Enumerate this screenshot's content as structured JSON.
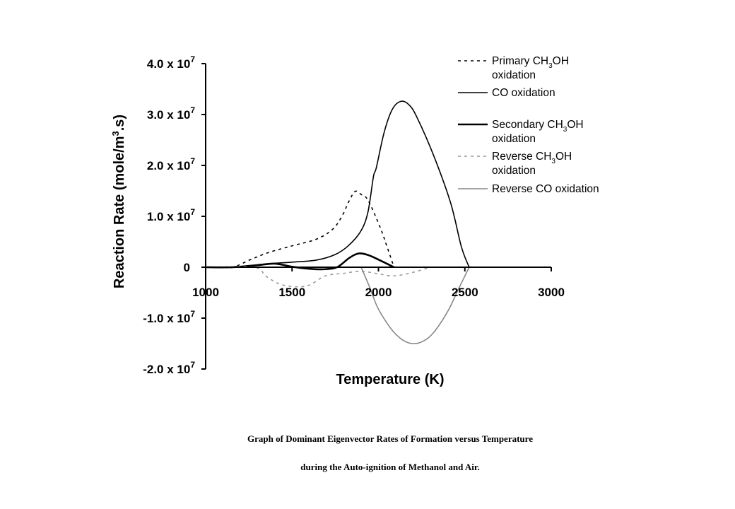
{
  "chart_data": {
    "type": "line",
    "xlabel": "Temperature (K)",
    "ylabel": "Reaction Rate (mole/m³.s)",
    "xlim": [
      1000,
      3000
    ],
    "ylim": [
      -20000000,
      40000000
    ],
    "x_ticks": [
      "1000",
      "1500",
      "2000",
      "2500",
      "3000"
    ],
    "x_tick_values": [
      1000,
      1500,
      2000,
      2500,
      3000
    ],
    "y_ticks": [
      {
        "value": 40000000,
        "mantissa": "4.0 x 10",
        "exp": "7"
      },
      {
        "value": 30000000,
        "mantissa": "3.0 x 10",
        "exp": "7"
      },
      {
        "value": 20000000,
        "mantissa": "2.0 x 10",
        "exp": "7"
      },
      {
        "value": 10000000,
        "mantissa": "1.0 x 10",
        "exp": "7"
      },
      {
        "value": 0,
        "mantissa": "0",
        "exp": ""
      },
      {
        "value": -10000000,
        "mantissa": "-1.0 x 10",
        "exp": "7"
      },
      {
        "value": -20000000,
        "mantissa": "-2.0 x 10",
        "exp": "7"
      }
    ],
    "grid": false,
    "legend_position": "top-right",
    "series": [
      {
        "name": "Primary CH3OH oxidation",
        "label_lines": [
          [
            "Primary CH",
            "3",
            "OH"
          ],
          [
            "oxidation"
          ]
        ],
        "color": "#000000",
        "style": "dotted",
        "width": 1.6,
        "x": [
          1000,
          1100,
          1160,
          1260,
          1365,
          1500,
          1640,
          1733,
          1787,
          1830,
          1865,
          1900,
          1939,
          2008,
          2050,
          2090
        ],
        "y": [
          0,
          0,
          0,
          1500000,
          2900000,
          4200000,
          5500000,
          7400000,
          9900000,
          13000000,
          14900000,
          14300000,
          13200000,
          8000000,
          4000000,
          0
        ]
      },
      {
        "name": "CO oxidation",
        "label_lines": [
          [
            "CO oxidation"
          ]
        ],
        "color": "#000000",
        "style": "solid",
        "width": 1.6,
        "x": [
          1000,
          1150,
          1250,
          1365,
          1500,
          1640,
          1750,
          1828,
          1898,
          1939,
          1971,
          1988,
          2033,
          2080,
          2131,
          2180,
          2225,
          2320,
          2418,
          2480,
          2525
        ],
        "y": [
          0,
          0,
          300000,
          700000,
          1000000,
          1400000,
          2500000,
          4300000,
          7100000,
          10800000,
          17800000,
          19600000,
          26500000,
          31000000,
          32600000,
          31800000,
          29300000,
          21900000,
          12600000,
          4000000,
          0
        ]
      },
      {
        "name": "Secondary CH3OH oxidation",
        "label_lines": [
          [
            "Secondary CH",
            "3",
            "OH"
          ],
          [
            "oxidation"
          ]
        ],
        "color": "#000000",
        "style": "solid",
        "width": 2.6,
        "x": [
          1000,
          1150,
          1300,
          1400,
          1500,
          1600,
          1680,
          1760,
          1830,
          1885,
          1940,
          2000,
          2090
        ],
        "y": [
          0,
          0,
          400000,
          700000,
          100000,
          -300000,
          -400000,
          0,
          1800000,
          2700000,
          2400000,
          1500000,
          0
        ]
      },
      {
        "name": "Reverse CH3OH oxidation",
        "label_lines": [
          [
            "Reverse CH",
            "3",
            "OH"
          ],
          [
            "oxidation"
          ]
        ],
        "color": "#999999",
        "style": "dotted",
        "width": 1.6,
        "x": [
          1000,
          1280,
          1350,
          1447,
          1582,
          1693,
          1800,
          1898,
          2000,
          2090,
          2200,
          2300
        ],
        "y": [
          0,
          0,
          -1800000,
          -3500000,
          -3700000,
          -1700000,
          -1200000,
          -800000,
          -1300000,
          -1700000,
          -1000000,
          0
        ]
      },
      {
        "name": "Reverse CO oxidation",
        "label_lines": [
          [
            "Reverse CO oxidation"
          ]
        ],
        "color": "#888888",
        "style": "solid",
        "width": 1.6,
        "x": [
          1900,
          1950,
          1992,
          2040,
          2090,
          2150,
          2205,
          2260,
          2320,
          2402,
          2460,
          2525
        ],
        "y": [
          0,
          -4000000,
          -7700000,
          -10500000,
          -12800000,
          -14500000,
          -15000000,
          -14500000,
          -12800000,
          -8600000,
          -4500000,
          0
        ]
      }
    ]
  },
  "caption": {
    "line1": "Graph  of Dominant  Eigenvector  Rates of Formation   versus Temperature",
    "line2": "during  the Auto-ignition  of Methanol and Air."
  }
}
